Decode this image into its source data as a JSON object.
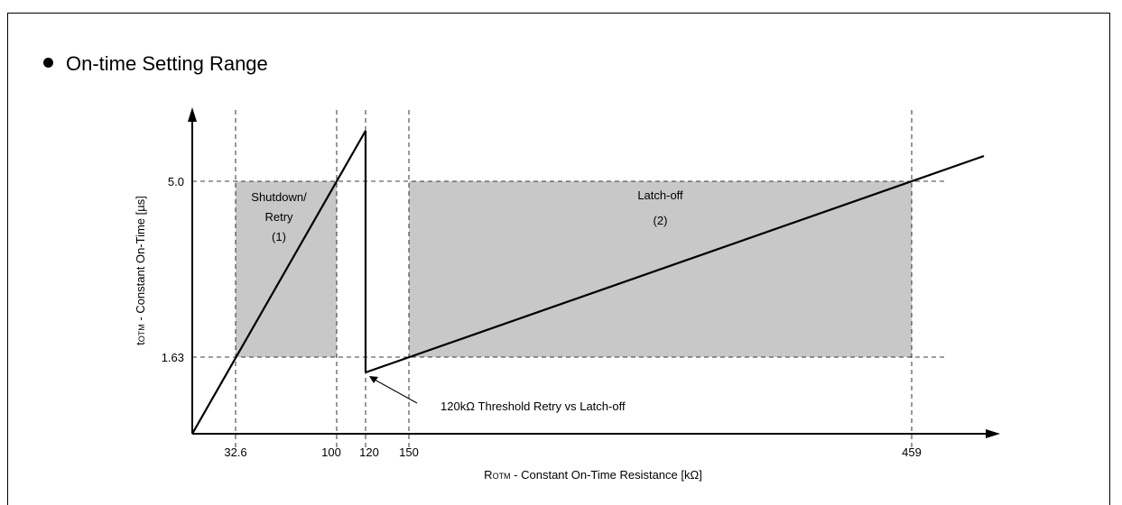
{
  "heading": "On-time Setting Range",
  "chart_data": {
    "type": "line",
    "xlabel": {
      "main": "R",
      "sub": "OTM",
      "rest": " - Constant On-Time Resistance [kΩ]"
    },
    "ylabel": {
      "main": "t",
      "sub": "OTM",
      "rest": " - Constant On-Time [µs]"
    },
    "x_ticks": [
      {
        "value": 32.6,
        "label": "32.6"
      },
      {
        "value": 100,
        "label": "100"
      },
      {
        "value": 120,
        "label": "120"
      },
      {
        "value": 150,
        "label": "150"
      },
      {
        "value": 459,
        "label": "459"
      }
    ],
    "y_ticks": [
      {
        "value": 1.63,
        "label": "1.63"
      },
      {
        "value": 5.0,
        "label": "5.0"
      }
    ],
    "xlim": [
      0,
      530
    ],
    "ylim": [
      0,
      7.5
    ],
    "series": [
      {
        "points": [
          [
            0,
            0
          ],
          [
            120,
            6.0
          ]
        ]
      },
      {
        "points": [
          [
            120,
            6.0
          ],
          [
            120,
            1.3
          ]
        ]
      },
      {
        "points": [
          [
            120,
            1.3
          ],
          [
            530,
            5.5
          ]
        ]
      }
    ],
    "regions": [
      {
        "x": [
          32.6,
          100
        ],
        "y": [
          1.63,
          5.0
        ],
        "color": "#c8c8c8",
        "labels": [
          "Shutdown/",
          "Retry",
          "(1)"
        ]
      },
      {
        "x": [
          150,
          459
        ],
        "y": [
          1.63,
          5.0
        ],
        "color": "#c8c8c8",
        "labels": [
          "Latch-off",
          "(2)"
        ]
      }
    ],
    "annotation": {
      "text": "120kΩ Threshold Retry vs Latch-off",
      "target": [
        120,
        1.3
      ]
    }
  }
}
